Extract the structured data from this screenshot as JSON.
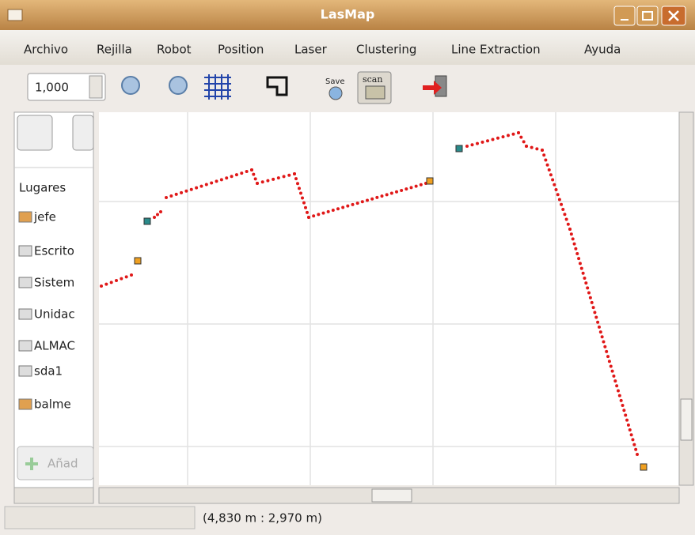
{
  "window": {
    "title": "LasMap"
  },
  "menu": [
    "Archivo",
    "Rejilla",
    "Robot",
    "Position",
    "Laser",
    "Clustering",
    "Line Extraction",
    "Ayuda"
  ],
  "toolbar": {
    "zoom": "1,000",
    "save": "Save",
    "scan": "scan"
  },
  "sidebar": {
    "header": "Lugares",
    "items": [
      "jefe",
      "Escrito",
      "Sistem",
      "Unidac",
      "ALMAC",
      "sda1",
      "balme"
    ],
    "add_button": "Añad"
  },
  "status": {
    "coordinates": "(4,830 m : 2,970 m)"
  }
}
